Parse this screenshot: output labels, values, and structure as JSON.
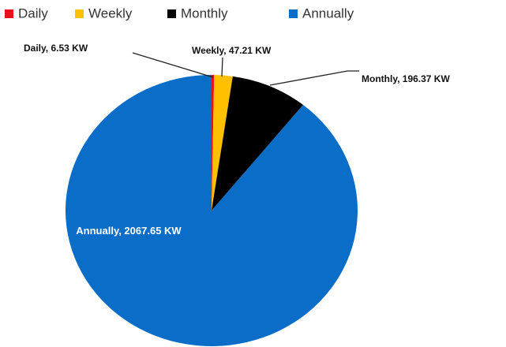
{
  "chart_data": {
    "type": "pie",
    "categories": [
      "Daily",
      "Weekly",
      "Monthly",
      "Annually"
    ],
    "values": [
      6.53,
      47.21,
      196.37,
      2067.65
    ],
    "value_labels": [
      "Daily, 6.53 KW",
      "Weekly, 47.21 KW",
      "Monthly, 196.37 KW",
      "Annually, 2067.65 KW"
    ],
    "colors": [
      "#e8101a",
      "#ffc000",
      "#000000",
      "#0a6ec8"
    ],
    "legend": "top"
  }
}
